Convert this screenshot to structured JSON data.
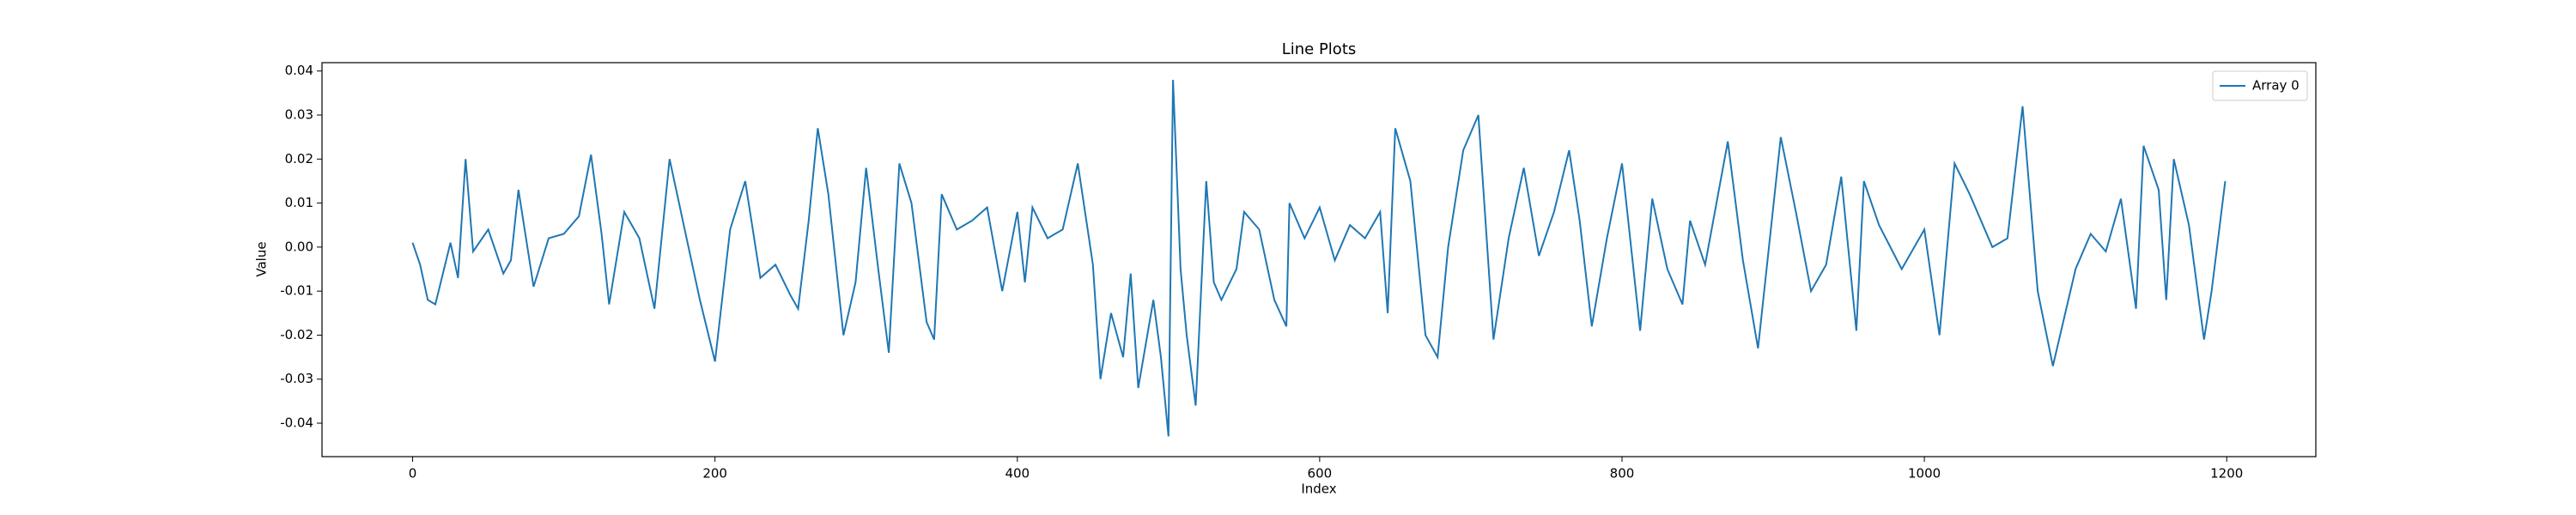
{
  "chart_data": {
    "type": "line",
    "title": "Line Plots",
    "x_label": "Index",
    "y_label": "Value",
    "legend": "upper right",
    "grid": false,
    "xlim": [
      -59.95,
      1258.95
    ],
    "ylim": [
      -0.0476,
      0.0419
    ],
    "xticks": [
      0,
      200,
      400,
      600,
      800,
      1000,
      1200
    ],
    "yticks": [
      -0.04,
      -0.03,
      -0.02,
      -0.01,
      {
        "value": 0,
        "label": "0.00"
      },
      0.01,
      0.02,
      0.03,
      0.04
    ],
    "x": [
      0,
      5,
      10,
      15,
      20,
      25,
      30,
      35,
      40,
      50,
      60,
      65,
      70,
      80,
      90,
      100,
      110,
      118,
      125,
      130,
      140,
      150,
      160,
      170,
      175,
      180,
      190,
      200,
      210,
      220,
      230,
      240,
      250,
      255,
      262,
      268,
      275,
      285,
      293,
      300,
      308,
      315,
      322,
      330,
      340,
      345,
      350,
      360,
      370,
      380,
      390,
      400,
      405,
      410,
      420,
      430,
      440,
      450,
      455,
      462,
      470,
      475,
      480,
      490,
      495,
      500,
      503,
      508,
      512,
      518,
      525,
      530,
      535,
      545,
      550,
      560,
      570,
      578,
      580,
      590,
      600,
      610,
      620,
      630,
      640,
      645,
      650,
      660,
      670,
      678,
      685,
      695,
      705,
      715,
      725,
      735,
      745,
      755,
      765,
      772,
      780,
      790,
      800,
      812,
      820,
      830,
      840,
      845,
      855,
      870,
      880,
      890,
      905,
      915,
      925,
      935,
      945,
      955,
      960,
      970,
      985,
      1000,
      1010,
      1020,
      1030,
      1045,
      1055,
      1065,
      1075,
      1085,
      1100,
      1110,
      1120,
      1130,
      1140,
      1145,
      1155,
      1160,
      1165,
      1175,
      1185,
      1190,
      1199
    ],
    "series": [
      {
        "name": "Array 0",
        "color": "#1f77b4",
        "values": [
          0.001,
          -0.004,
          -0.012,
          -0.013,
          -0.006,
          0.001,
          -0.007,
          0.02,
          -0.001,
          0.004,
          -0.006,
          -0.003,
          0.013,
          -0.009,
          0.002,
          0.003,
          0.007,
          0.021,
          0.003,
          -0.013,
          0.008,
          0.002,
          -0.014,
          0.02,
          0.012,
          0.004,
          -0.012,
          -0.026,
          0.004,
          0.015,
          -0.007,
          -0.004,
          -0.011,
          -0.014,
          0.006,
          0.027,
          0.012,
          -0.02,
          -0.008,
          0.018,
          -0.005,
          -0.024,
          0.019,
          0.01,
          -0.017,
          -0.021,
          0.012,
          0.004,
          0.006,
          0.009,
          -0.01,
          0.008,
          -0.008,
          0.009,
          0.002,
          0.004,
          0.019,
          -0.004,
          -0.03,
          -0.015,
          -0.025,
          -0.006,
          -0.032,
          -0.012,
          -0.025,
          -0.043,
          0.038,
          -0.005,
          -0.02,
          -0.036,
          0.015,
          -0.008,
          -0.012,
          -0.005,
          0.008,
          0.004,
          -0.012,
          -0.018,
          0.01,
          0.002,
          0.009,
          -0.003,
          0.005,
          0.002,
          0.008,
          -0.015,
          0.027,
          0.015,
          -0.02,
          -0.025,
          0.0,
          0.022,
          0.03,
          -0.021,
          0.002,
          0.018,
          -0.002,
          0.008,
          0.022,
          0.006,
          -0.018,
          0.002,
          0.019,
          -0.019,
          0.011,
          -0.005,
          -0.013,
          0.006,
          -0.004,
          0.024,
          -0.003,
          -0.023,
          0.025,
          0.008,
          -0.01,
          -0.004,
          0.016,
          -0.019,
          0.015,
          0.005,
          -0.005,
          0.004,
          -0.02,
          0.019,
          0.012,
          0.0,
          0.002,
          0.032,
          -0.01,
          -0.027,
          -0.005,
          0.003,
          -0.001,
          0.011,
          -0.014,
          0.023,
          0.013,
          -0.012,
          0.02,
          0.005,
          -0.021,
          -0.01,
          0.015
        ]
      }
    ]
  }
}
